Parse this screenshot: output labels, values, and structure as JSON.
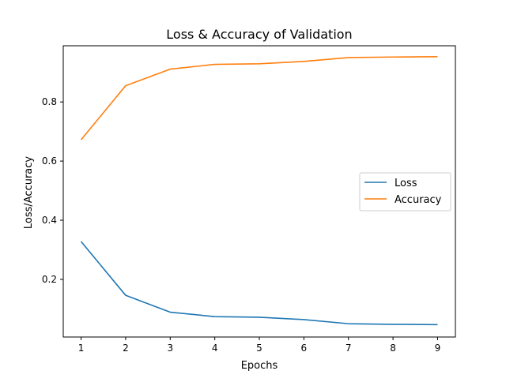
{
  "chart_data": {
    "type": "line",
    "title": "Loss & Accuracy of Validation",
    "xlabel": "Epochs",
    "ylabel": "Loss/Accuracy",
    "x": [
      1,
      2,
      3,
      4,
      5,
      6,
      7,
      8,
      9
    ],
    "xlim": [
      0.6,
      9.4
    ],
    "ylim": [
      0.005,
      0.99
    ],
    "x_ticks": [
      "1",
      "2",
      "3",
      "4",
      "5",
      "6",
      "7",
      "8",
      "9"
    ],
    "y_ticks": [
      "0.2",
      "0.4",
      "0.6",
      "0.8"
    ],
    "grid": false,
    "legend_position": "center-right",
    "series": [
      {
        "name": "Loss",
        "color": "#1f77b4",
        "values": [
          0.328,
          0.146,
          0.089,
          0.074,
          0.072,
          0.064,
          0.05,
          0.048,
          0.047
        ]
      },
      {
        "name": "Accuracy",
        "color": "#ff7f0e",
        "values": [
          0.672,
          0.855,
          0.911,
          0.927,
          0.929,
          0.937,
          0.95,
          0.952,
          0.953
        ]
      }
    ]
  }
}
